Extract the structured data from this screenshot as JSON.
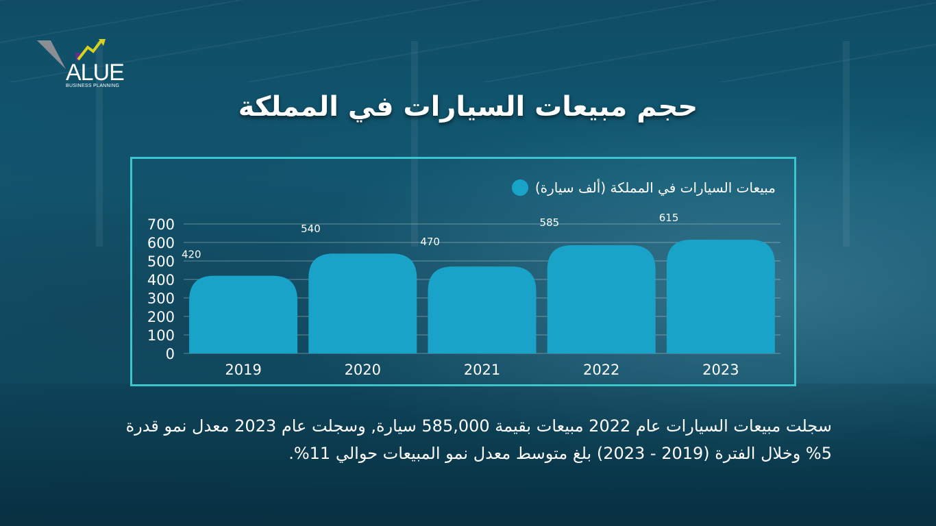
{
  "logo": {
    "word": "ALUE",
    "tagline": "BUSINESS PLANNING"
  },
  "title": "حجم مبيعات السيارات في المملكة",
  "chart_data": {
    "type": "bar",
    "categories": [
      "2019",
      "2020",
      "2021",
      "2022",
      "2023"
    ],
    "series": [
      {
        "name": "مبيعات السيارات في المملكة (ألف سيارة)",
        "values": [
          420,
          540,
          470,
          585,
          615
        ],
        "color": "#1aa3c8"
      }
    ],
    "ylim": [
      0,
      700
    ],
    "yticks": [
      0,
      100,
      200,
      300,
      400,
      500,
      600,
      700
    ],
    "grid": true,
    "legend_position": "top-right"
  },
  "note": "سجلت مبيعات السيارات عام 2022 مبيعات بقيمة 585,000 سيارة, وسجلت عام 2023 معدل نمو قدرة 5% وخلال الفترة (2019 - 2023) بلغ متوسط معدل نمو المبيعات حوالي 11%."
}
